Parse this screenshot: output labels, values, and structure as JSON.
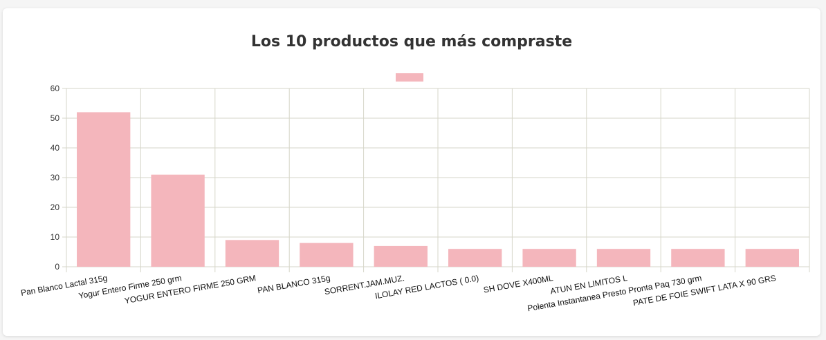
{
  "chart_data": {
    "type": "bar",
    "title": "Los 10 productos que más compraste",
    "xlabel": "",
    "ylabel": "",
    "ylim": [
      0,
      60
    ],
    "yticks": [
      0,
      10,
      20,
      30,
      40,
      50,
      60
    ],
    "grid": true,
    "legend": "top-center",
    "categories": [
      "Pan Blanco Lactal 315g",
      "Yogur Entero Firme 250 grm",
      "YOGUR ENTERO FIRME 250 GRM",
      "PAN BLANCO 315g",
      "SORRENT.JAM.MUZ.",
      "ILOLAY RED LACTOS ( 0.0)",
      "SH DOVE X400ML",
      "ATUN EN LIMITOS L",
      "Polenta Instantanea Presto Pronta Paq 730 grm",
      "PATE DE FOIE SWIFT LATA X 90 GRS"
    ],
    "series": [
      {
        "values": [
          52,
          31,
          9,
          8,
          7,
          6,
          6,
          6,
          6,
          6
        ]
      }
    ],
    "colors": {
      "bar": "#f4b6bc",
      "grid": "#d6d6c8",
      "axis": "#bdbdae"
    }
  }
}
